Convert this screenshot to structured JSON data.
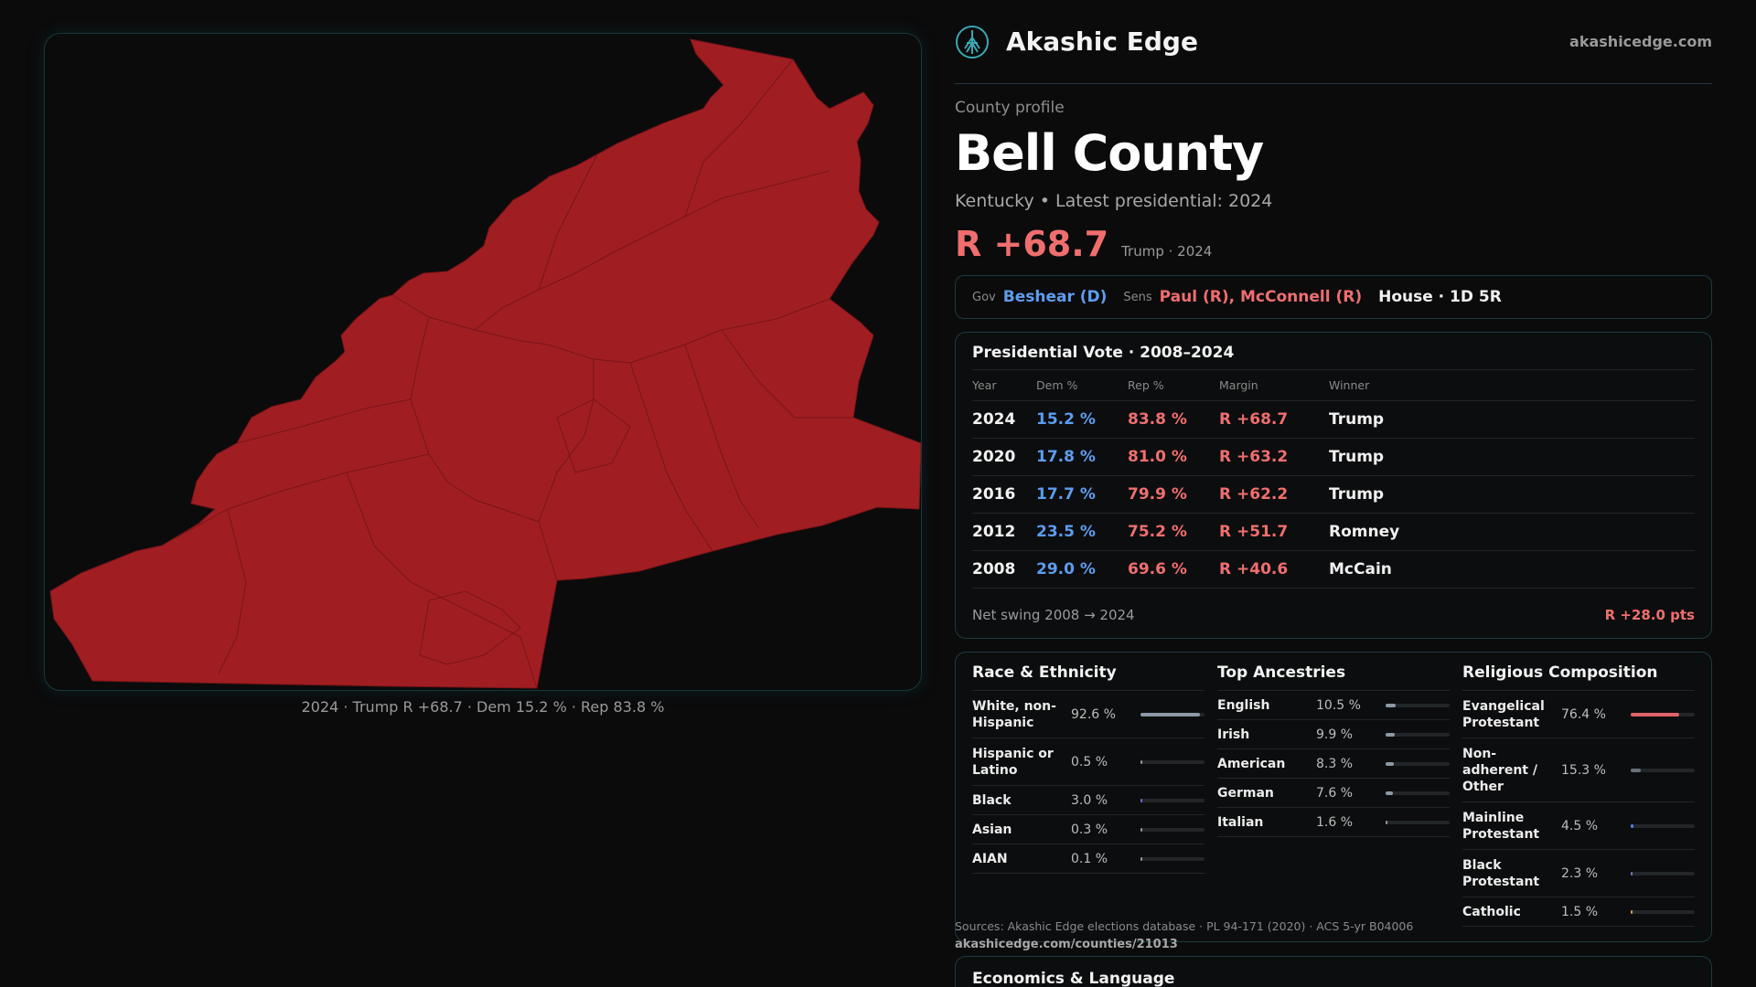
{
  "map": {
    "caption": "2024 · Trump R +68.7 · Dem 15.2 % · Rep 83.8 %",
    "fill_color": "#a01e22"
  },
  "header": {
    "brand": "Akashic Edge",
    "site": "akashicedge.com",
    "logo_icon": "akashic-tree-icon"
  },
  "profile": {
    "kicker": "County profile",
    "title": "Bell County",
    "subtitle": "Kentucky • Latest presidential: 2024",
    "margin": "R +68.7",
    "margin_note": "Trump · 2024"
  },
  "reps": {
    "gov_label": "Gov",
    "gov": "Beshear (D)",
    "sens_label": "Sens",
    "sens": "Paul (R), McConnell (R)",
    "house": "House · 1D 5R"
  },
  "presidential": {
    "title": "Presidential Vote · 2008–2024",
    "headers": [
      "Year",
      "Dem %",
      "Rep %",
      "Margin",
      "Winner"
    ],
    "rows": [
      [
        "2024",
        "15.2 %",
        "83.8 %",
        "R +68.7",
        "Trump"
      ],
      [
        "2020",
        "17.8 %",
        "81.0 %",
        "R +63.2",
        "Trump"
      ],
      [
        "2016",
        "17.7 %",
        "79.9 %",
        "R +62.2",
        "Trump"
      ],
      [
        "2012",
        "23.5 %",
        "75.2 %",
        "R +51.7",
        "Romney"
      ],
      [
        "2008",
        "29.0 %",
        "69.6 %",
        "R +40.6",
        "McCain"
      ]
    ],
    "swing_label": "Net swing 2008 → 2024",
    "swing_value": "R +28.0 pts"
  },
  "race": {
    "title": "Race & Ethnicity",
    "items": [
      {
        "name": "White, non-Hispanic",
        "value": "92.6 %",
        "pct": 92.6,
        "color": "#8d98a6"
      },
      {
        "name": "Hispanic or Latino",
        "value": "0.5 %",
        "pct": 0.5,
        "color": "#8d98a6"
      },
      {
        "name": "Black",
        "value": "3.0 %",
        "pct": 3.0,
        "color": "#6f6cc9"
      },
      {
        "name": "Asian",
        "value": "0.3 %",
        "pct": 0.3,
        "color": "#8d98a6"
      },
      {
        "name": "AIAN",
        "value": "0.1 %",
        "pct": 0.1,
        "color": "#8d98a6"
      }
    ]
  },
  "ancestry": {
    "title": "Top Ancestries",
    "items": [
      {
        "name": "English",
        "value": "10.5 %",
        "pct": 10.5,
        "color": "#8d98a6"
      },
      {
        "name": "Irish",
        "value": "9.9 %",
        "pct": 9.9,
        "color": "#8d98a6"
      },
      {
        "name": "American",
        "value": "8.3 %",
        "pct": 8.3,
        "color": "#8d98a6"
      },
      {
        "name": "German",
        "value": "7.6 %",
        "pct": 7.6,
        "color": "#8d98a6"
      },
      {
        "name": "Italian",
        "value": "1.6 %",
        "pct": 1.6,
        "color": "#8d98a6"
      }
    ]
  },
  "religion": {
    "title": "Religious Composition",
    "items": [
      {
        "name": "Evangelical Protestant",
        "value": "76.4 %",
        "pct": 76.4,
        "color": "#e0636a"
      },
      {
        "name": "Non-adherent / Other",
        "value": "15.3 %",
        "pct": 15.3,
        "color": "#6b7078"
      },
      {
        "name": "Mainline Protestant",
        "value": "4.5 %",
        "pct": 4.5,
        "color": "#5b7fe0"
      },
      {
        "name": "Black Protestant",
        "value": "2.3 %",
        "pct": 2.3,
        "color": "#7a6cc9"
      },
      {
        "name": "Catholic",
        "value": "1.5 %",
        "pct": 1.5,
        "color": "#d4a23a"
      }
    ]
  },
  "footer": {
    "sources": "Sources: Akashic Edge elections database · PL 94-171 (2020) · ACS 5-yr B04006",
    "link": "akashicedge.com/counties/21013",
    "next_section": "Economics & Language"
  }
}
